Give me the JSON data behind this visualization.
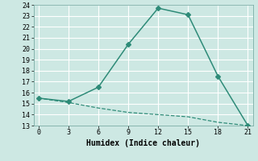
{
  "xlabel": "Humidex (Indice chaleur)",
  "line1_x": [
    0,
    3,
    6,
    9,
    12,
    15,
    18,
    21
  ],
  "line1_y": [
    15.5,
    15.1,
    14.6,
    14.2,
    14.0,
    13.8,
    13.3,
    13.0
  ],
  "line2_x": [
    0,
    3,
    6,
    9,
    12,
    15,
    18,
    21
  ],
  "line2_y": [
    15.5,
    15.2,
    16.5,
    20.4,
    23.7,
    23.1,
    17.5,
    13.0
  ],
  "line_color": "#2e8b78",
  "bg_color": "#cde8e3",
  "grid_color": "#ffffff",
  "xlim": [
    -0.5,
    21.5
  ],
  "ylim": [
    13,
    24
  ],
  "xticks": [
    0,
    3,
    6,
    9,
    12,
    15,
    18,
    21
  ],
  "yticks": [
    13,
    14,
    15,
    16,
    17,
    18,
    19,
    20,
    21,
    22,
    23,
    24
  ],
  "tick_fontsize": 6.0,
  "xlabel_fontsize": 7.0
}
